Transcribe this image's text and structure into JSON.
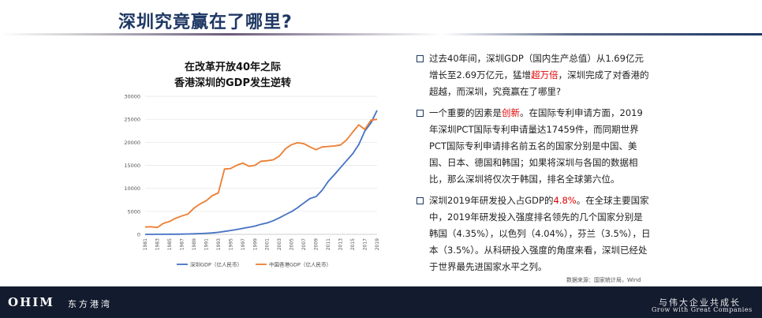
{
  "header": {
    "title": "深圳究竟赢在了哪里?"
  },
  "chart_data": {
    "type": "line",
    "title_lines": [
      "在改革开放40年之际",
      "香港深圳的GDP发生逆转"
    ],
    "x": [
      1981,
      1982,
      1983,
      1984,
      1985,
      1986,
      1987,
      1988,
      1989,
      1990,
      1991,
      1992,
      1993,
      1994,
      1995,
      1996,
      1997,
      1998,
      1999,
      2000,
      2001,
      2002,
      2003,
      2004,
      2005,
      2006,
      2007,
      2008,
      2009,
      2010,
      2011,
      2012,
      2013,
      2014,
      2015,
      2016,
      2017,
      2018,
      2019
    ],
    "x_tick_labels": [
      "1981",
      "1983",
      "1985",
      "1987",
      "1989",
      "1991",
      "1993",
      "1995",
      "1997",
      "1999",
      "2001",
      "2003",
      "2005",
      "2007",
      "2009",
      "2011",
      "2013",
      "2015",
      "2017",
      "2019"
    ],
    "ylim": [
      0,
      30000
    ],
    "y_ticks": [
      "0",
      "5000",
      "10000",
      "15000",
      "20000",
      "25000",
      "30000"
    ],
    "series": [
      {
        "name": "深圳GDP（亿人民币）",
        "color": "#4472c4",
        "values": [
          5,
          8,
          13,
          23,
          39,
          42,
          56,
          87,
          116,
          172,
          237,
          317,
          453,
          635,
          843,
          1048,
          1297,
          1535,
          1804,
          2187,
          2482,
          2970,
          3585,
          4282,
          4951,
          5814,
          6801,
          7787,
          8201,
          9582,
          11506,
          12950,
          14500,
          16002,
          17503,
          19493,
          22438,
          24222,
          26927
        ]
      },
      {
        "name": "中国香港GDP（亿人民币）",
        "color": "#ed7d31",
        "values": [
          1600,
          1650,
          1500,
          2400,
          2800,
          3500,
          4000,
          4400,
          5700,
          6600,
          7300,
          8400,
          9000,
          14200,
          14300,
          15000,
          15500,
          14800,
          15000,
          15900,
          16000,
          16200,
          17000,
          18600,
          19500,
          19900,
          19700,
          19000,
          18400,
          19000,
          19100,
          19200,
          19400,
          20500,
          22200,
          23800,
          22800,
          24800,
          25000
        ]
      }
    ]
  },
  "bullets": [
    {
      "parts": [
        {
          "text": "过去40年间，深圳GDP（国内生产总值）从1.69亿元增长至2.69万亿元，猛增",
          "red": false
        },
        {
          "text": "超万倍",
          "red": true
        },
        {
          "text": "，深圳完成了对香港的超越，而深圳，究竟赢在了哪里?",
          "red": false
        }
      ]
    },
    {
      "parts": [
        {
          "text": "一个重要的因素是",
          "red": false
        },
        {
          "text": "创新",
          "red": true
        },
        {
          "text": "。在国际专利申请方面，2019年深圳PCT国际专利申请量达17459件，而同期世界PCT国际专利申请排名前五名的国家分别是中国、美国、日本、德国和韩国；如果将深圳与各国的数据相比，那么深圳将仅次于韩国，排名全球第六位。",
          "red": false
        }
      ]
    },
    {
      "parts": [
        {
          "text": "深圳2019年研发投入占GDP的",
          "red": false
        },
        {
          "text": "4.8%",
          "red": true
        },
        {
          "text": "。在全球主要国家中，2019年研发投入强度排名领先的几个国家分别是韩国（4.35%），以色列（4.04%），芬兰（3.5%），日本（3.5%）。从科研投入强度的角度来看，深圳已经处于世界最先进国家水平之列。",
          "red": false
        }
      ]
    }
  ],
  "source": "数据来源：国家统计局，Wind",
  "footer": {
    "logo": "OHIM",
    "logo_cn": "东方港湾",
    "slogan_cn": "与伟大企业共成长",
    "slogan_en": "Grow with Great Companies"
  }
}
